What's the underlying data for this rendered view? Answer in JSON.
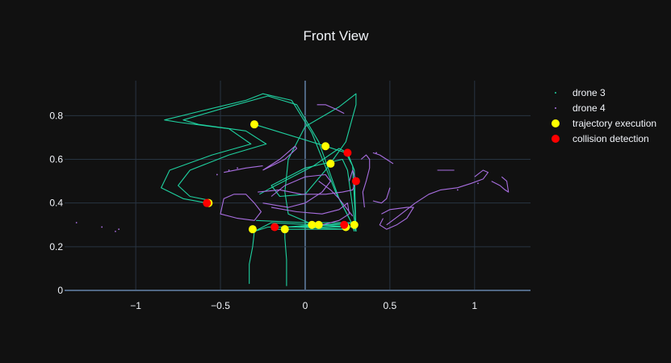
{
  "chart_data": {
    "type": "scatter",
    "title": "Front View",
    "xlabel": "",
    "ylabel": "",
    "xlim": [
      -1.42,
      1.33
    ],
    "ylim": [
      0,
      0.96
    ],
    "x_ticks": [
      -1,
      -0.5,
      0,
      0.5,
      1
    ],
    "x_tick_labels": [
      "−1",
      "−0.5",
      "0",
      "0.5",
      "1"
    ],
    "y_ticks": [
      0,
      0.2,
      0.4,
      0.6,
      0.8
    ],
    "y_tick_labels": [
      "0",
      "0.2",
      "0.4",
      "0.6",
      "0.8"
    ],
    "grid": true,
    "legend_position": "top-right",
    "colors": {
      "background": "#111111",
      "grid": "#283442",
      "zeroline": "#506784",
      "text": "#f2f5fa",
      "drone3": "#1fd1a0",
      "drone4": "#a86ee0",
      "trajectory": "#ffff00",
      "collision": "#ff0000"
    },
    "series": [
      {
        "name": "drone 3",
        "mode": "lines",
        "paths": [
          [
            [
              -0.33,
              0.03
            ],
            [
              -0.33,
              0.12
            ],
            [
              -0.31,
              0.2
            ],
            [
              -0.3,
              0.27
            ],
            [
              -0.22,
              0.29
            ],
            [
              0.0,
              0.29
            ],
            [
              0.2,
              0.29
            ],
            [
              0.28,
              0.29
            ],
            [
              0.29,
              0.27
            ]
          ],
          [
            [
              -0.11,
              0.02
            ],
            [
              -0.11,
              0.14
            ],
            [
              -0.12,
              0.24
            ],
            [
              -0.12,
              0.29
            ],
            [
              0.05,
              0.3
            ],
            [
              0.22,
              0.3
            ],
            [
              0.28,
              0.31
            ]
          ],
          [
            [
              -0.29,
              0.32
            ],
            [
              0.0,
              0.31
            ],
            [
              0.2,
              0.31
            ],
            [
              0.27,
              0.31
            ],
            [
              -0.05,
              0.29
            ],
            [
              0.25,
              0.28
            ],
            [
              -0.2,
              0.28
            ]
          ],
          [
            [
              -0.58,
              0.4
            ],
            [
              -0.72,
              0.42
            ],
            [
              -0.85,
              0.47
            ],
            [
              -0.8,
              0.55
            ],
            [
              -0.55,
              0.62
            ],
            [
              -0.32,
              0.67
            ],
            [
              -0.45,
              0.74
            ],
            [
              -0.75,
              0.77
            ],
            [
              -0.83,
              0.78
            ],
            [
              -0.62,
              0.82
            ],
            [
              -0.35,
              0.87
            ],
            [
              -0.25,
              0.9
            ],
            [
              -0.08,
              0.87
            ],
            [
              0.04,
              0.72
            ],
            [
              0.18,
              0.45
            ],
            [
              0.3,
              0.27
            ]
          ],
          [
            [
              -0.55,
              0.41
            ],
            [
              -0.68,
              0.43
            ],
            [
              -0.75,
              0.48
            ],
            [
              -0.68,
              0.55
            ],
            [
              -0.45,
              0.62
            ],
            [
              -0.23,
              0.67
            ],
            [
              -0.35,
              0.73
            ],
            [
              -0.63,
              0.76
            ],
            [
              -0.72,
              0.78
            ],
            [
              -0.5,
              0.83
            ],
            [
              -0.22,
              0.89
            ],
            [
              -0.05,
              0.85
            ],
            [
              0.08,
              0.68
            ],
            [
              0.2,
              0.42
            ],
            [
              0.3,
              0.27
            ]
          ],
          [
            [
              -0.3,
              0.76
            ],
            [
              0.12,
              0.66
            ],
            [
              0.24,
              0.63
            ],
            [
              0.28,
              0.57
            ],
            [
              0.3,
              0.27
            ]
          ],
          [
            [
              -0.27,
              0.44
            ],
            [
              -0.2,
              0.47
            ],
            [
              0.05,
              0.57
            ],
            [
              0.2,
              0.65
            ],
            [
              0.25,
              0.63
            ],
            [
              0.29,
              0.55
            ],
            [
              0.3,
              0.27
            ]
          ],
          [
            [
              0.0,
              0.44
            ],
            [
              -0.15,
              0.43
            ],
            [
              -0.2,
              0.48
            ],
            [
              0.0,
              0.56
            ],
            [
              0.22,
              0.6
            ],
            [
              0.25,
              0.55
            ],
            [
              0.3,
              0.27
            ]
          ],
          [
            [
              0.0,
              0.44
            ],
            [
              0.12,
              0.55
            ],
            [
              0.24,
              0.68
            ],
            [
              0.3,
              0.85
            ],
            [
              0.3,
              0.9
            ],
            [
              0.2,
              0.84
            ],
            [
              0.0,
              0.75
            ],
            [
              -0.1,
              0.6
            ],
            [
              -0.12,
              0.45
            ],
            [
              -0.1,
              0.35
            ],
            [
              0.05,
              0.3
            ],
            [
              0.25,
              0.29
            ]
          ],
          [
            [
              -0.3,
              0.27
            ],
            [
              -0.2,
              0.31
            ],
            [
              0.05,
              0.3
            ],
            [
              0.28,
              0.29
            ]
          ]
        ]
      },
      {
        "name": "drone 4",
        "mode": "lines",
        "paths": [
          [
            [
              -0.42,
              0.44
            ],
            [
              -0.35,
              0.44
            ],
            [
              -0.3,
              0.4
            ],
            [
              -0.26,
              0.36
            ],
            [
              -0.3,
              0.32
            ],
            [
              -0.4,
              0.33
            ],
            [
              -0.5,
              0.35
            ],
            [
              -0.48,
              0.42
            ],
            [
              -0.42,
              0.44
            ]
          ],
          [
            [
              -0.28,
              0.45
            ],
            [
              -0.15,
              0.46
            ],
            [
              -0.02,
              0.44
            ],
            [
              0.12,
              0.44
            ],
            [
              0.22,
              0.45
            ],
            [
              0.28,
              0.46
            ],
            [
              0.3,
              0.5
            ],
            [
              0.28,
              0.55
            ],
            [
              0.26,
              0.5
            ]
          ],
          [
            [
              -0.2,
              0.38
            ],
            [
              -0.05,
              0.36
            ],
            [
              0.1,
              0.35
            ],
            [
              0.2,
              0.37
            ],
            [
              0.25,
              0.4
            ],
            [
              0.26,
              0.35
            ],
            [
              0.2,
              0.32
            ],
            [
              0.1,
              0.3
            ]
          ],
          [
            [
              -0.25,
              0.55
            ],
            [
              -0.12,
              0.6
            ],
            [
              -0.05,
              0.65
            ],
            [
              -0.06,
              0.66
            ],
            [
              -0.15,
              0.6
            ],
            [
              -0.25,
              0.55
            ]
          ],
          [
            [
              0.08,
              0.5
            ],
            [
              0.15,
              0.46
            ],
            [
              0.2,
              0.42
            ],
            [
              0.24,
              0.38
            ],
            [
              0.28,
              0.34
            ]
          ],
          [
            [
              0.07,
              0.85
            ],
            [
              0.12,
              0.85
            ],
            [
              0.18,
              0.83
            ],
            [
              0.23,
              0.81
            ]
          ],
          [
            [
              0.35,
              0.38
            ],
            [
              0.34,
              0.45
            ],
            [
              0.36,
              0.5
            ],
            [
              0.38,
              0.56
            ],
            [
              0.38,
              0.6
            ],
            [
              0.36,
              0.62
            ],
            [
              0.33,
              0.6
            ]
          ],
          [
            [
              0.4,
              0.41
            ],
            [
              0.45,
              0.4
            ],
            [
              0.48,
              0.42
            ],
            [
              0.5,
              0.47
            ]
          ],
          [
            [
              0.46,
              0.33
            ],
            [
              0.44,
              0.3
            ],
            [
              0.48,
              0.28
            ],
            [
              0.54,
              0.3
            ],
            [
              0.6,
              0.33
            ],
            [
              0.64,
              0.38
            ],
            [
              0.6,
              0.38
            ],
            [
              0.5,
              0.37
            ],
            [
              0.45,
              0.35
            ]
          ],
          [
            [
              0.48,
              0.3
            ],
            [
              0.55,
              0.34
            ],
            [
              0.65,
              0.4
            ],
            [
              0.73,
              0.44
            ],
            [
              0.8,
              0.46
            ],
            [
              0.9,
              0.47
            ],
            [
              0.98,
              0.49
            ],
            [
              1.05,
              0.51
            ],
            [
              1.08,
              0.54
            ],
            [
              1.05,
              0.55
            ],
            [
              1.0,
              0.52
            ]
          ],
          [
            [
              1.1,
              0.5
            ],
            [
              1.15,
              0.48
            ],
            [
              1.18,
              0.46
            ],
            [
              1.2,
              0.45
            ],
            [
              1.19,
              0.5
            ],
            [
              1.16,
              0.52
            ]
          ],
          [
            [
              -0.48,
              0.54
            ],
            [
              -0.35,
              0.56
            ],
            [
              -0.25,
              0.57
            ]
          ],
          [
            [
              0.4,
              0.63
            ],
            [
              0.44,
              0.62
            ],
            [
              0.48,
              0.6
            ],
            [
              0.52,
              0.58
            ]
          ],
          [
            [
              0.78,
              0.55
            ],
            [
              0.84,
              0.55
            ],
            [
              0.88,
              0.55
            ]
          ],
          [
            [
              -0.25,
              0.4
            ],
            [
              -0.1,
              0.38
            ],
            [
              0.0,
              0.4
            ],
            [
              0.1,
              0.45
            ],
            [
              0.15,
              0.5
            ],
            [
              0.12,
              0.53
            ],
            [
              0.0,
              0.52
            ],
            [
              -0.12,
              0.48
            ],
            [
              -0.2,
              0.43
            ]
          ]
        ]
      },
      {
        "name": "drone 4",
        "mode": "markers",
        "points": [
          [
            -1.35,
            0.31
          ],
          [
            -1.2,
            0.29
          ],
          [
            -1.12,
            0.27
          ],
          [
            -1.1,
            0.28
          ],
          [
            -0.45,
            0.55
          ],
          [
            -0.4,
            0.56
          ],
          [
            -0.52,
            0.53
          ],
          [
            0.42,
            0.63
          ],
          [
            0.9,
            0.46
          ],
          [
            1.02,
            0.49
          ]
        ]
      },
      {
        "name": "trajectory execution",
        "mode": "markers",
        "points": [
          [
            -0.3,
            0.76
          ],
          [
            0.12,
            0.66
          ],
          [
            0.15,
            0.58
          ],
          [
            -0.57,
            0.4
          ],
          [
            -0.31,
            0.28
          ],
          [
            -0.12,
            0.28
          ],
          [
            0.04,
            0.3
          ],
          [
            0.08,
            0.3
          ],
          [
            0.24,
            0.29
          ],
          [
            0.29,
            0.3
          ]
        ]
      },
      {
        "name": "collision detection",
        "mode": "markers",
        "points": [
          [
            0.25,
            0.63
          ],
          [
            0.3,
            0.5
          ],
          [
            -0.58,
            0.4
          ],
          [
            -0.18,
            0.29
          ],
          [
            0.23,
            0.3
          ]
        ]
      }
    ]
  },
  "legend": {
    "items": [
      {
        "label": "drone 3",
        "symbol": "line",
        "color": "#1fd1a0"
      },
      {
        "label": "drone 4",
        "symbol": "line",
        "color": "#a86ee0"
      },
      {
        "label": "trajectory execution",
        "symbol": "marker",
        "color": "#ffff00"
      },
      {
        "label": "collision detection",
        "symbol": "marker",
        "color": "#ff0000"
      }
    ]
  }
}
